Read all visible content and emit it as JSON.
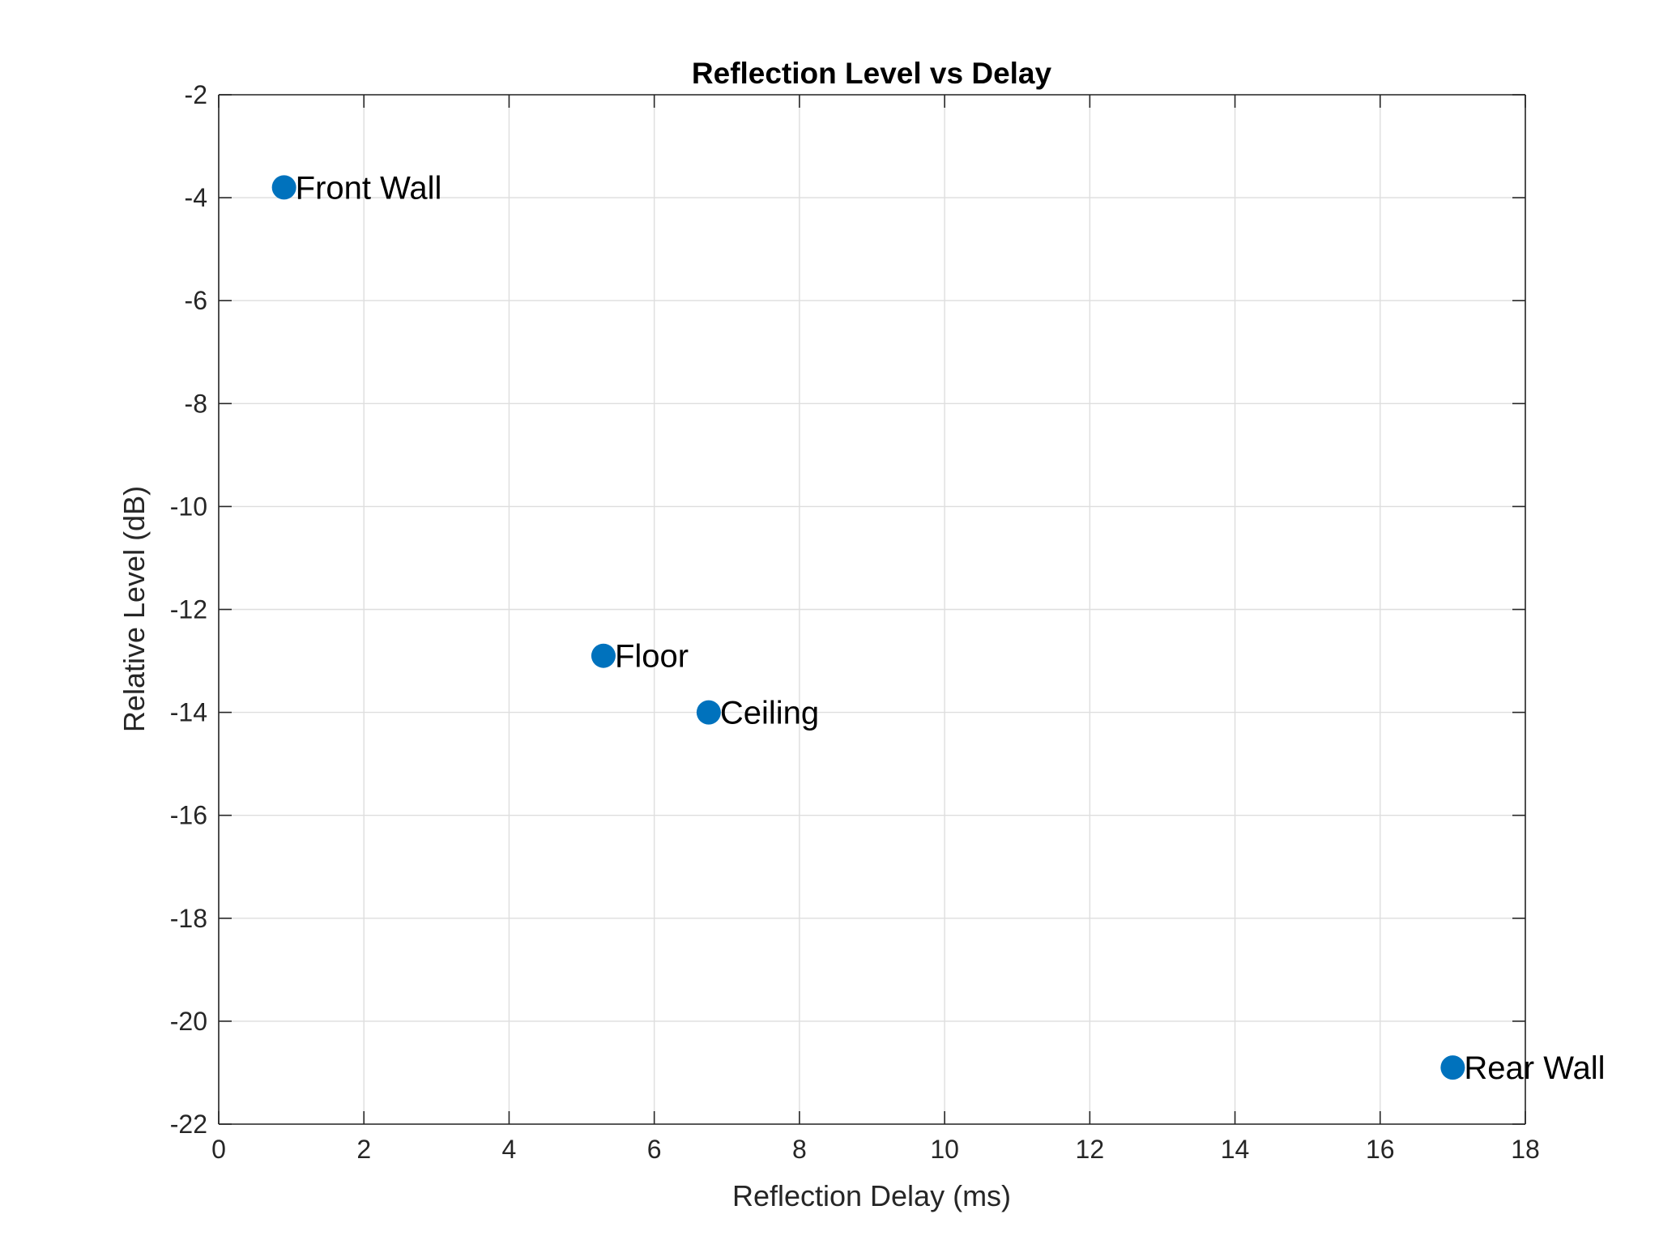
{
  "chart_data": {
    "type": "scatter",
    "title": "Reflection Level vs Delay",
    "xlabel": "Reflection Delay (ms)",
    "ylabel": "Relative Level (dB)",
    "xlim": [
      0,
      18
    ],
    "ylim": [
      -22,
      -2
    ],
    "xticks": [
      0,
      2,
      4,
      6,
      8,
      10,
      12,
      14,
      16,
      18
    ],
    "yticks": [
      -2,
      -4,
      -6,
      -8,
      -10,
      -12,
      -14,
      -16,
      -18,
      -20,
      -22
    ],
    "grid": true,
    "marker_color": "#0072BD",
    "points": [
      {
        "label": "Front Wall",
        "x": 0.9,
        "y": -3.8
      },
      {
        "label": "Floor",
        "x": 5.3,
        "y": -12.9
      },
      {
        "label": "Ceiling",
        "x": 6.75,
        "y": -14.0
      },
      {
        "label": "Rear Wall",
        "x": 17.0,
        "y": -20.9
      }
    ]
  }
}
